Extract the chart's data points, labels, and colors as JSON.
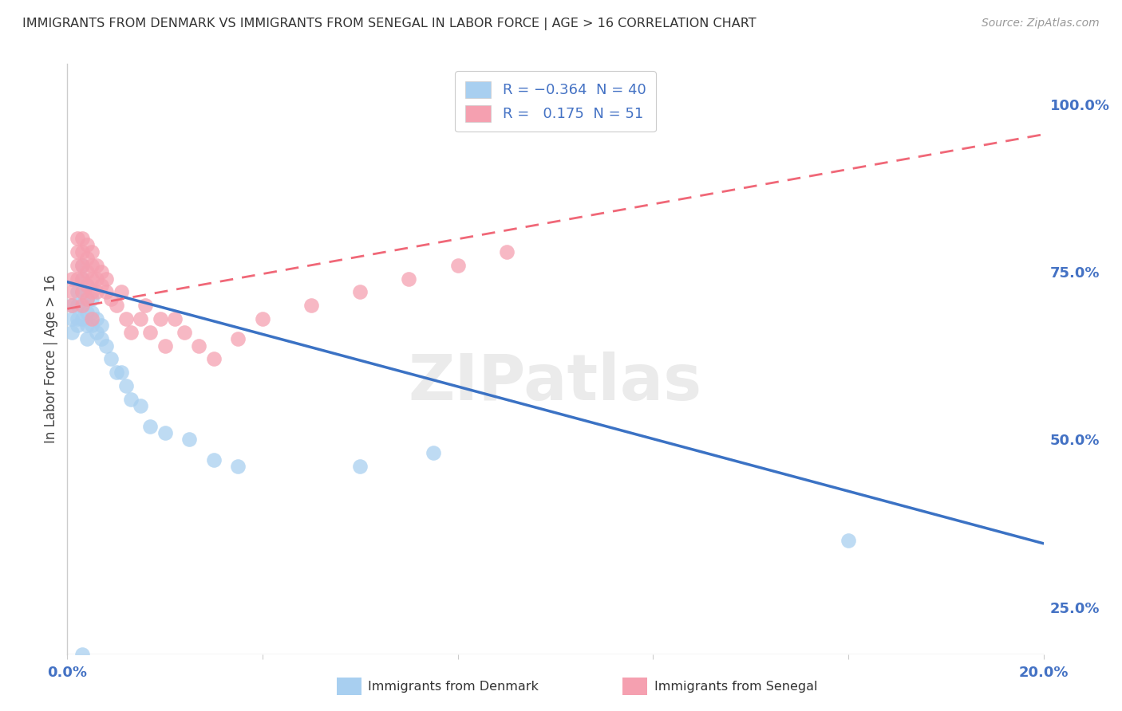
{
  "title": "IMMIGRANTS FROM DENMARK VS IMMIGRANTS FROM SENEGAL IN LABOR FORCE | AGE > 16 CORRELATION CHART",
  "source": "Source: ZipAtlas.com",
  "ylabel": "In Labor Force | Age > 16",
  "xlim": [
    0.0,
    0.2
  ],
  "ylim": [
    0.18,
    1.06
  ],
  "y_ticks": [
    0.25,
    0.5,
    0.75,
    1.0
  ],
  "y_tick_labels": [
    "25.0%",
    "50.0%",
    "75.0%",
    "100.0%"
  ],
  "denmark_color": "#a8cff0",
  "senegal_color": "#f5a0b0",
  "denmark_line_color": "#3b72c4",
  "senegal_line_color": "#f06878",
  "denmark_R": -0.364,
  "denmark_N": 40,
  "senegal_R": 0.175,
  "senegal_N": 51,
  "watermark": "ZIPatlas",
  "background_color": "#ffffff",
  "grid_color": "#e0e0e0",
  "denmark_x": [
    0.001,
    0.001,
    0.001,
    0.002,
    0.002,
    0.002,
    0.002,
    0.003,
    0.003,
    0.003,
    0.003,
    0.003,
    0.004,
    0.004,
    0.004,
    0.004,
    0.004,
    0.005,
    0.005,
    0.005,
    0.006,
    0.006,
    0.007,
    0.007,
    0.008,
    0.009,
    0.01,
    0.011,
    0.012,
    0.013,
    0.015,
    0.017,
    0.02,
    0.025,
    0.03,
    0.035,
    0.06,
    0.075,
    0.16,
    0.003
  ],
  "denmark_y": [
    0.7,
    0.68,
    0.66,
    0.72,
    0.7,
    0.68,
    0.67,
    0.76,
    0.74,
    0.72,
    0.7,
    0.68,
    0.73,
    0.71,
    0.69,
    0.67,
    0.65,
    0.71,
    0.69,
    0.67,
    0.68,
    0.66,
    0.67,
    0.65,
    0.64,
    0.62,
    0.6,
    0.6,
    0.58,
    0.56,
    0.55,
    0.52,
    0.51,
    0.5,
    0.47,
    0.46,
    0.46,
    0.48,
    0.35,
    0.18
  ],
  "senegal_x": [
    0.001,
    0.001,
    0.001,
    0.002,
    0.002,
    0.002,
    0.002,
    0.003,
    0.003,
    0.003,
    0.003,
    0.003,
    0.003,
    0.004,
    0.004,
    0.004,
    0.004,
    0.004,
    0.005,
    0.005,
    0.005,
    0.005,
    0.006,
    0.006,
    0.006,
    0.007,
    0.007,
    0.008,
    0.008,
    0.009,
    0.01,
    0.011,
    0.012,
    0.013,
    0.015,
    0.016,
    0.017,
    0.019,
    0.02,
    0.022,
    0.024,
    0.027,
    0.03,
    0.035,
    0.04,
    0.05,
    0.06,
    0.07,
    0.08,
    0.09,
    0.005
  ],
  "senegal_y": [
    0.74,
    0.72,
    0.7,
    0.8,
    0.78,
    0.76,
    0.74,
    0.8,
    0.78,
    0.76,
    0.74,
    0.72,
    0.7,
    0.79,
    0.77,
    0.75,
    0.73,
    0.71,
    0.78,
    0.76,
    0.74,
    0.72,
    0.76,
    0.74,
    0.72,
    0.75,
    0.73,
    0.74,
    0.72,
    0.71,
    0.7,
    0.72,
    0.68,
    0.66,
    0.68,
    0.7,
    0.66,
    0.68,
    0.64,
    0.68,
    0.66,
    0.64,
    0.62,
    0.65,
    0.68,
    0.7,
    0.72,
    0.74,
    0.76,
    0.78,
    0.68
  ],
  "dk_line_x": [
    0.0,
    0.2
  ],
  "dk_line_y": [
    0.735,
    0.345
  ],
  "sn_line_x": [
    0.0,
    0.2
  ],
  "sn_line_y": [
    0.695,
    0.955
  ]
}
